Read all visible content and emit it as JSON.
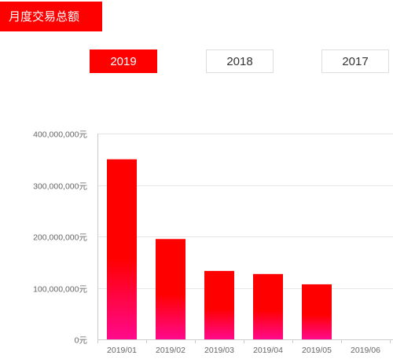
{
  "header": {
    "title": "月度交易总额"
  },
  "year_tabs": [
    {
      "label": "2019",
      "active": true
    },
    {
      "label": "2018",
      "active": false
    },
    {
      "label": "2017",
      "active": false
    }
  ],
  "colors": {
    "accent": "#ff0000",
    "bar_top": "#ff0000",
    "bar_bottom": "#ff0a8c"
  },
  "chart_data": {
    "type": "bar",
    "categories": [
      "2019/01",
      "2019/02",
      "2019/03",
      "2019/04",
      "2019/05",
      "2019/06"
    ],
    "values": [
      350000000,
      195000000,
      133000000,
      127000000,
      107000000,
      0
    ],
    "yticks": [
      0,
      100000000,
      200000000,
      300000000,
      400000000
    ],
    "ytick_labels": [
      "0元",
      "100,000,000元",
      "200,000,000元",
      "300,000,000元",
      "400,000,000元"
    ],
    "ylim": [
      0,
      400000000
    ],
    "grid": true,
    "title": "",
    "xlabel": "",
    "ylabel": ""
  }
}
